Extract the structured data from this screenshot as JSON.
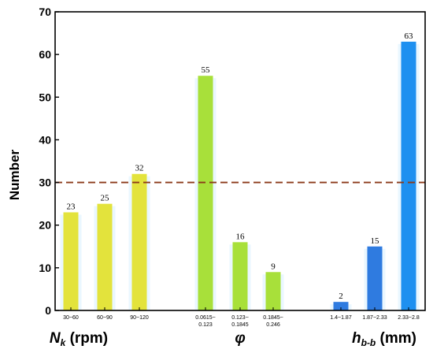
{
  "chart_data": {
    "type": "bar",
    "ylabel": "Number",
    "ylim": [
      0,
      70
    ],
    "yticks": [
      0,
      10,
      20,
      30,
      40,
      50,
      60,
      70
    ],
    "reference_line": {
      "value": 30,
      "color": "#8B3A1A",
      "style": "dashed"
    },
    "groups": [
      {
        "symbol": "N",
        "subscript": "k",
        "unit": " (rpm)",
        "bars": [
          {
            "category": [
              "30~60"
            ],
            "value": 23,
            "color": "#E3E33C"
          },
          {
            "category": [
              "60~90"
            ],
            "value": 25,
            "color": "#E3E33C"
          },
          {
            "category": [
              "90~120"
            ],
            "value": 32,
            "color": "#E3E33C"
          }
        ]
      },
      {
        "symbol": "φ",
        "subscript": "",
        "unit": "",
        "bars": [
          {
            "category": [
              "0.0615~",
              "0.123"
            ],
            "value": 55,
            "color": "#A8E03A"
          },
          {
            "category": [
              "0.123~",
              "0.1845"
            ],
            "value": 16,
            "color": "#A8E03A"
          },
          {
            "category": [
              "0.1845~",
              "0.246"
            ],
            "value": 9,
            "color": "#A8E03A"
          }
        ]
      },
      {
        "symbol": "h",
        "subscript": "b-b",
        "unit": " (mm)",
        "bars": [
          {
            "category": [
              "1.4~1.87"
            ],
            "value": 2,
            "color": "#2F7BE0"
          },
          {
            "category": [
              "1.87~2.33"
            ],
            "value": 15,
            "color": "#2F7BE0"
          },
          {
            "category": [
              "2.33~2.8"
            ],
            "value": 63,
            "color": "#1E90F0"
          }
        ]
      }
    ]
  }
}
